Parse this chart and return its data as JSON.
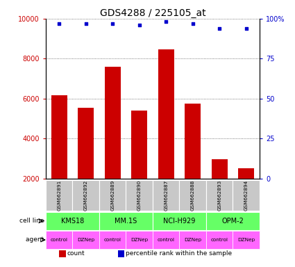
{
  "title": "GDS4288 / 225105_at",
  "samples": [
    "GSM662891",
    "GSM662892",
    "GSM662889",
    "GSM662890",
    "GSM662887",
    "GSM662888",
    "GSM662893",
    "GSM662894"
  ],
  "counts": [
    6150,
    5550,
    7600,
    5380,
    8480,
    5750,
    2950,
    2520
  ],
  "percentile_ranks": [
    97,
    97,
    97,
    96,
    98,
    97,
    94,
    94
  ],
  "bar_color": "#cc0000",
  "dot_color": "#0000cc",
  "cell_lines": [
    "KMS18",
    "MM.1S",
    "NCI-H929",
    "OPM-2"
  ],
  "cell_line_color": "#66ff66",
  "agents": [
    "control",
    "DZNep",
    "control",
    "DZNep",
    "control",
    "DZNep",
    "control",
    "DZNep"
  ],
  "agent_color": "#ff66ff",
  "sample_box_color": "#c8c8c8",
  "ylim_left": [
    2000,
    10000
  ],
  "ylim_right": [
    0,
    100
  ],
  "yticks_left": [
    2000,
    4000,
    6000,
    8000,
    10000
  ],
  "ytick_labels_left": [
    "2000",
    "4000",
    "6000",
    "8000",
    "10000"
  ],
  "yticks_right": [
    0,
    25,
    50,
    75,
    100
  ],
  "ytick_labels_right": [
    "0",
    "25",
    "50",
    "75",
    "100%"
  ],
  "left_axis_color": "#cc0000",
  "right_axis_color": "#0000cc",
  "grid_color": "#000000",
  "legend_count_color": "#cc0000",
  "legend_dot_color": "#0000cc",
  "fig_width": 4.25,
  "fig_height": 3.84
}
